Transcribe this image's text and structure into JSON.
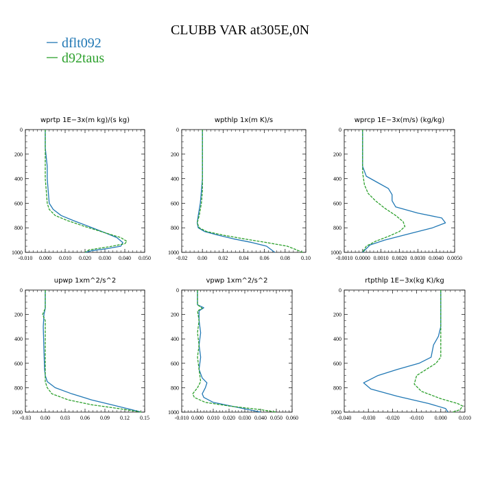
{
  "figure_title": "CLUBB VAR at305E,0N",
  "legend": [
    {
      "label": "dflt092",
      "color": "#1f77b4"
    },
    {
      "label": "d92taus",
      "color": "#2ca02c"
    }
  ],
  "chart_data": [
    {
      "type": "line",
      "title": "wprtp  1E−3x(m kg)/(s kg)",
      "xlim": [
        -0.01,
        0.05
      ],
      "xticks": [
        -0.01,
        0.0,
        0.01,
        0.02,
        0.03,
        0.04,
        0.05
      ],
      "xticklabels": [
        "-0.010",
        "0.000",
        "0.010",
        "0.020",
        "0.030",
        "0.040",
        "0.050"
      ],
      "ylim": [
        1000,
        0
      ],
      "yticks": [
        0,
        200,
        400,
        600,
        800,
        1000
      ],
      "series": [
        {
          "name": "dflt092",
          "x": [
            0.0,
            0.0,
            0.001,
            0.001,
            0.0015,
            0.002,
            0.004,
            0.008,
            0.014,
            0.022,
            0.03,
            0.036,
            0.039,
            0.038,
            0.031,
            0.024,
            0.02
          ],
          "y": [
            0,
            150,
            300,
            400,
            500,
            600,
            650,
            700,
            740,
            790,
            840,
            880,
            920,
            950,
            970,
            985,
            1000
          ]
        },
        {
          "name": "d92taus",
          "x": [
            0.0,
            0.0,
            0.0,
            0.0,
            0.0005,
            0.001,
            0.002,
            0.005,
            0.011,
            0.02,
            0.03,
            0.038,
            0.041,
            0.04,
            0.032,
            0.022,
            0.02
          ],
          "y": [
            0,
            150,
            300,
            400,
            500,
            600,
            650,
            700,
            740,
            790,
            840,
            880,
            910,
            930,
            955,
            980,
            1000
          ]
        }
      ]
    },
    {
      "type": "line",
      "title": "wpthlp  1x(m K)/s",
      "xlim": [
        -0.02,
        0.1
      ],
      "xticks": [
        -0.02,
        0.0,
        0.02,
        0.04,
        0.06,
        0.08,
        0.1
      ],
      "xticklabels": [
        "-0.02",
        "0.00",
        "0.02",
        "0.04",
        "0.06",
        "0.08",
        "0.10"
      ],
      "ylim": [
        1000,
        0
      ],
      "yticks": [
        0,
        200,
        400,
        600,
        800,
        1000
      ],
      "series": [
        {
          "name": "dflt092",
          "x": [
            0.0,
            0.0,
            0.0,
            -0.001,
            -0.002,
            -0.004,
            -0.005,
            -0.004,
            0.002,
            0.015,
            0.03,
            0.048,
            0.062,
            0.07
          ],
          "y": [
            0,
            200,
            400,
            500,
            600,
            700,
            760,
            800,
            830,
            860,
            890,
            920,
            950,
            1000
          ]
        },
        {
          "name": "d92taus",
          "x": [
            0.0,
            0.0,
            0.0,
            0.0,
            -0.001,
            -0.003,
            -0.005,
            -0.003,
            0.004,
            0.02,
            0.04,
            0.062,
            0.082,
            0.097
          ],
          "y": [
            0,
            200,
            400,
            500,
            600,
            700,
            760,
            800,
            830,
            860,
            890,
            920,
            950,
            1000
          ]
        }
      ]
    },
    {
      "type": "line",
      "title": "wprcp  1E−3x(m/s) (kg/kg)",
      "xlim": [
        -0.001,
        0.005
      ],
      "xticks": [
        -0.001,
        0.0,
        0.001,
        0.002,
        0.003,
        0.004,
        0.005
      ],
      "xticklabels": [
        "-0.0010",
        "0.0000",
        "0.0010",
        "0.0020",
        "0.0030",
        "0.0040",
        "0.0050"
      ],
      "ylim": [
        1000,
        0
      ],
      "yticks": [
        0,
        200,
        400,
        600,
        800,
        1000
      ],
      "series": [
        {
          "name": "dflt092",
          "x": [
            0.0,
            0.0,
            0.0002,
            0.0008,
            0.0014,
            0.0016,
            0.0016,
            0.0018,
            0.003,
            0.0043,
            0.0045,
            0.0038,
            0.0025,
            0.0012,
            0.0004,
            0.0
          ],
          "y": [
            0,
            300,
            380,
            430,
            480,
            530,
            580,
            630,
            680,
            720,
            760,
            800,
            850,
            900,
            940,
            1000
          ]
        },
        {
          "name": "d92taus",
          "x": [
            0.0,
            0.0,
            0.0001,
            0.0003,
            0.0007,
            0.0012,
            0.0018,
            0.0022,
            0.0023,
            0.002,
            0.0014,
            0.0007,
            0.0002,
            0.0
          ],
          "y": [
            0,
            350,
            450,
            520,
            580,
            640,
            700,
            750,
            790,
            830,
            870,
            910,
            950,
            1000
          ]
        }
      ]
    },
    {
      "type": "line",
      "title": "upwp  1xm^2/s^2",
      "xlim": [
        -0.03,
        0.15
      ],
      "xticks": [
        -0.03,
        0.0,
        0.03,
        0.06,
        0.09,
        0.12,
        0.15
      ],
      "xticklabels": [
        "-0.03",
        "0.00",
        "0.03",
        "0.06",
        "0.09",
        "0.12",
        "0.15"
      ],
      "ylim": [
        1000,
        0
      ],
      "yticks": [
        0,
        200,
        400,
        600,
        800,
        1000
      ],
      "series": [
        {
          "name": "dflt092",
          "x": [
            0.0,
            0.0,
            -0.002,
            -0.003,
            -0.002,
            -0.001,
            0.0,
            0.003,
            0.015,
            0.04,
            0.07,
            0.1,
            0.13,
            0.145
          ],
          "y": [
            0,
            150,
            200,
            300,
            500,
            650,
            700,
            750,
            800,
            850,
            900,
            940,
            980,
            1000
          ]
        },
        {
          "name": "d92taus",
          "x": [
            0.0,
            0.0,
            -0.004,
            0.0,
            0.0,
            0.0,
            0.0,
            0.003,
            0.01,
            0.035,
            0.07,
            0.11,
            0.145
          ],
          "y": [
            0,
            150,
            200,
            250,
            400,
            600,
            750,
            800,
            850,
            900,
            940,
            970,
            1000
          ]
        }
      ]
    },
    {
      "type": "line",
      "title": "vpwp  1xm^2/s^2",
      "xlim": [
        -0.01,
        0.06
      ],
      "xticks": [
        -0.01,
        0.0,
        0.01,
        0.02,
        0.03,
        0.04,
        0.05,
        0.06
      ],
      "xticklabels": [
        "-0.010",
        "0.000",
        "0.010",
        "0.020",
        "0.030",
        "0.040",
        "0.050",
        "0.060"
      ],
      "ylim": [
        1000,
        0
      ],
      "yticks": [
        0,
        200,
        400,
        600,
        800,
        1000
      ],
      "series": [
        {
          "name": "dflt092",
          "x": [
            0.0,
            0.0,
            0.004,
            0.001,
            0.001,
            0.002,
            0.001,
            0.002,
            0.001,
            0.003,
            0.006,
            0.005,
            0.003,
            0.004,
            0.01,
            0.025,
            0.04
          ],
          "y": [
            0,
            120,
            145,
            170,
            250,
            350,
            450,
            550,
            650,
            720,
            760,
            800,
            850,
            880,
            920,
            960,
            1000
          ]
        },
        {
          "name": "d92taus",
          "x": [
            0.0,
            0.0,
            0.003,
            0.0,
            0.001,
            0.0,
            0.001,
            0.0,
            0.001,
            0.002,
            0.0,
            -0.003,
            -0.002,
            0.005,
            0.02,
            0.04,
            0.05
          ],
          "y": [
            0,
            120,
            150,
            170,
            250,
            350,
            450,
            550,
            650,
            750,
            800,
            850,
            880,
            920,
            950,
            980,
            1000
          ]
        }
      ]
    },
    {
      "type": "line",
      "title": "rtpthlp  1E−3x(kg K)/kg",
      "xlim": [
        -0.04,
        0.01
      ],
      "xticks": [
        -0.04,
        -0.03,
        -0.02,
        -0.01,
        0.0,
        0.01
      ],
      "xticklabels": [
        "-0.040",
        "-0.030",
        "-0.020",
        "-0.010",
        "0.000",
        "0.010"
      ],
      "ylim": [
        1000,
        0
      ],
      "yticks": [
        0,
        200,
        400,
        600,
        800,
        1000
      ],
      "series": [
        {
          "name": "dflt092",
          "x": [
            0.0,
            0.0,
            -0.001,
            -0.003,
            -0.004,
            -0.009,
            -0.018,
            -0.026,
            -0.032,
            -0.029,
            -0.018,
            -0.005,
            0.002,
            0.003
          ],
          "y": [
            0,
            300,
            380,
            450,
            550,
            600,
            650,
            700,
            760,
            810,
            870,
            930,
            970,
            1000
          ]
        },
        {
          "name": "d92taus",
          "x": [
            0.0,
            0.0,
            0.0,
            -0.002,
            -0.006,
            -0.01,
            -0.011,
            -0.008,
            0.0,
            0.007,
            0.009,
            0.008,
            0.005
          ],
          "y": [
            0,
            400,
            550,
            600,
            650,
            700,
            770,
            830,
            890,
            930,
            950,
            980,
            1000
          ]
        }
      ]
    }
  ]
}
